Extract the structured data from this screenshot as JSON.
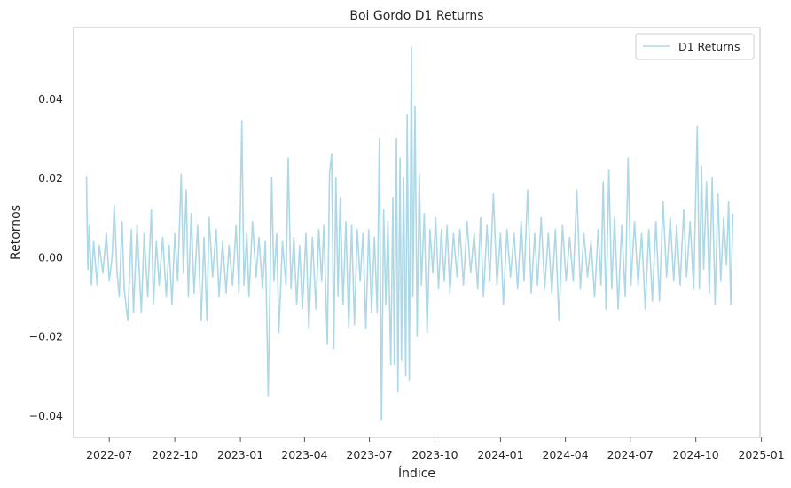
{
  "chart_data": {
    "type": "line",
    "title": "Boi Gordo D1 Returns",
    "xlabel": "Índice",
    "ylabel": "Retornos",
    "xlim": [
      "2022-05-12",
      "2024-12-30"
    ],
    "ylim": [
      -0.0455,
      0.058
    ],
    "x_ticks": [
      "2022-07",
      "2022-10",
      "2023-01",
      "2023-04",
      "2023-07",
      "2023-10",
      "2024-01",
      "2024-04",
      "2024-07",
      "2024-10",
      "2025-01"
    ],
    "y_ticks": [
      -0.04,
      -0.02,
      0.0,
      0.02,
      0.04
    ],
    "y_tick_labels": [
      "−0.04",
      "−0.02",
      "0.00",
      "0.02",
      "0.04"
    ],
    "grid": false,
    "legend_position": "top-right",
    "series": [
      {
        "name": "D1 Returns",
        "color": "#add8e6",
        "x_start": "2022-05-30",
        "x_end": "2024-11-22",
        "points": [
          [
            "2022-05-30",
            0.0205
          ],
          [
            "2022-06-01",
            -0.003
          ],
          [
            "2022-06-03",
            0.008
          ],
          [
            "2022-06-06",
            -0.007
          ],
          [
            "2022-06-09",
            0.004
          ],
          [
            "2022-06-14",
            -0.007
          ],
          [
            "2022-06-17",
            0.003
          ],
          [
            "2022-06-22",
            -0.004
          ],
          [
            "2022-06-27",
            0.006
          ],
          [
            "2022-07-01",
            -0.006
          ],
          [
            "2022-07-05",
            0.0
          ],
          [
            "2022-07-08",
            0.013
          ],
          [
            "2022-07-12",
            -0.004
          ],
          [
            "2022-07-15",
            -0.01
          ],
          [
            "2022-07-19",
            0.009
          ],
          [
            "2022-07-22",
            -0.008
          ],
          [
            "2022-07-27",
            -0.016
          ],
          [
            "2022-08-01",
            0.007
          ],
          [
            "2022-08-04",
            -0.014
          ],
          [
            "2022-08-09",
            0.008
          ],
          [
            "2022-08-15",
            -0.014
          ],
          [
            "2022-08-19",
            0.006
          ],
          [
            "2022-08-24",
            -0.01
          ],
          [
            "2022-08-29",
            0.012
          ],
          [
            "2022-09-01",
            -0.012
          ],
          [
            "2022-09-05",
            0.004
          ],
          [
            "2022-09-09",
            -0.007
          ],
          [
            "2022-09-14",
            0.005
          ],
          [
            "2022-09-19",
            -0.01
          ],
          [
            "2022-09-23",
            0.003
          ],
          [
            "2022-09-27",
            -0.012
          ],
          [
            "2022-10-01",
            0.006
          ],
          [
            "2022-10-05",
            -0.006
          ],
          [
            "2022-10-10",
            0.021
          ],
          [
            "2022-10-13",
            -0.004
          ],
          [
            "2022-10-17",
            0.017
          ],
          [
            "2022-10-20",
            -0.01
          ],
          [
            "2022-10-24",
            0.011
          ],
          [
            "2022-10-28",
            -0.009
          ],
          [
            "2022-11-02",
            0.008
          ],
          [
            "2022-11-07",
            -0.016
          ],
          [
            "2022-11-11",
            0.005
          ],
          [
            "2022-11-15",
            -0.016
          ],
          [
            "2022-11-18",
            0.01
          ],
          [
            "2022-11-23",
            -0.005
          ],
          [
            "2022-11-28",
            0.007
          ],
          [
            "2022-12-02",
            -0.01
          ],
          [
            "2022-12-07",
            0.004
          ],
          [
            "2022-12-12",
            -0.009
          ],
          [
            "2022-12-16",
            0.003
          ],
          [
            "2022-12-21",
            -0.007
          ],
          [
            "2022-12-26",
            0.008
          ],
          [
            "2022-12-30",
            -0.009
          ],
          [
            "2023-01-03",
            0.0345
          ],
          [
            "2023-01-06",
            -0.007
          ],
          [
            "2023-01-10",
            0.006
          ],
          [
            "2023-01-13",
            -0.01
          ],
          [
            "2023-01-18",
            0.009
          ],
          [
            "2023-01-23",
            -0.005
          ],
          [
            "2023-01-27",
            0.005
          ],
          [
            "2023-02-01",
            -0.008
          ],
          [
            "2023-02-05",
            0.004
          ],
          [
            "2023-02-09",
            -0.035
          ],
          [
            "2023-02-14",
            0.02
          ],
          [
            "2023-02-17",
            -0.006
          ],
          [
            "2023-02-21",
            0.006
          ],
          [
            "2023-02-24",
            -0.019
          ],
          [
            "2023-03-01",
            0.004
          ],
          [
            "2023-03-06",
            -0.007
          ],
          [
            "2023-03-09",
            0.025
          ],
          [
            "2023-03-13",
            -0.008
          ],
          [
            "2023-03-17",
            0.005
          ],
          [
            "2023-03-21",
            -0.012
          ],
          [
            "2023-03-25",
            0.003
          ],
          [
            "2023-03-29",
            -0.013
          ],
          [
            "2023-04-03",
            0.006
          ],
          [
            "2023-04-07",
            -0.018
          ],
          [
            "2023-04-12",
            0.005
          ],
          [
            "2023-04-17",
            -0.013
          ],
          [
            "2023-04-21",
            0.007
          ],
          [
            "2023-04-25",
            -0.006
          ],
          [
            "2023-04-28",
            0.008
          ],
          [
            "2023-05-03",
            -0.022
          ],
          [
            "2023-05-06",
            0.021
          ],
          [
            "2023-05-09",
            0.026
          ],
          [
            "2023-05-12",
            -0.023
          ],
          [
            "2023-05-15",
            0.02
          ],
          [
            "2023-05-18",
            -0.01
          ],
          [
            "2023-05-21",
            0.015
          ],
          [
            "2023-05-25",
            -0.012
          ],
          [
            "2023-05-29",
            0.009
          ],
          [
            "2023-06-02",
            -0.018
          ],
          [
            "2023-06-06",
            0.008
          ],
          [
            "2023-06-10",
            -0.017
          ],
          [
            "2023-06-14",
            0.007
          ],
          [
            "2023-06-18",
            -0.006
          ],
          [
            "2023-06-22",
            0.006
          ],
          [
            "2023-06-26",
            -0.018
          ],
          [
            "2023-06-30",
            0.007
          ],
          [
            "2023-07-04",
            -0.014
          ],
          [
            "2023-07-08",
            0.005
          ],
          [
            "2023-07-12",
            -0.014
          ],
          [
            "2023-07-15",
            0.03
          ],
          [
            "2023-07-18",
            -0.041
          ],
          [
            "2023-07-21",
            0.012
          ],
          [
            "2023-07-24",
            -0.012
          ],
          [
            "2023-07-27",
            0.009
          ],
          [
            "2023-07-31",
            -0.027
          ],
          [
            "2023-08-03",
            0.015
          ],
          [
            "2023-08-05",
            -0.027
          ],
          [
            "2023-08-08",
            0.03
          ],
          [
            "2023-08-10",
            -0.034
          ],
          [
            "2023-08-13",
            0.025
          ],
          [
            "2023-08-15",
            -0.026
          ],
          [
            "2023-08-18",
            0.02
          ],
          [
            "2023-08-21",
            -0.03
          ],
          [
            "2023-08-23",
            0.036
          ],
          [
            "2023-08-26",
            -0.031
          ],
          [
            "2023-08-29",
            0.053
          ],
          [
            "2023-08-31",
            -0.01
          ],
          [
            "2023-09-03",
            0.038
          ],
          [
            "2023-09-06",
            -0.02
          ],
          [
            "2023-09-09",
            0.021
          ],
          [
            "2023-09-12",
            -0.007
          ],
          [
            "2023-09-16",
            0.011
          ],
          [
            "2023-09-20",
            -0.019
          ],
          [
            "2023-09-24",
            0.007
          ],
          [
            "2023-09-28",
            -0.004
          ],
          [
            "2023-10-02",
            0.01
          ],
          [
            "2023-10-06",
            -0.008
          ],
          [
            "2023-10-10",
            0.007
          ],
          [
            "2023-10-14",
            -0.006
          ],
          [
            "2023-10-18",
            0.008
          ],
          [
            "2023-10-22",
            -0.009
          ],
          [
            "2023-10-27",
            0.006
          ],
          [
            "2023-11-01",
            -0.005
          ],
          [
            "2023-11-05",
            0.007
          ],
          [
            "2023-11-10",
            -0.007
          ],
          [
            "2023-11-15",
            0.009
          ],
          [
            "2023-11-20",
            -0.004
          ],
          [
            "2023-11-25",
            0.006
          ],
          [
            "2023-11-30",
            -0.008
          ],
          [
            "2023-12-04",
            0.01
          ],
          [
            "2023-12-08",
            -0.01
          ],
          [
            "2023-12-13",
            0.008
          ],
          [
            "2023-12-17",
            -0.006
          ],
          [
            "2023-12-22",
            0.016
          ],
          [
            "2023-12-27",
            -0.007
          ],
          [
            "2024-01-01",
            0.006
          ],
          [
            "2024-01-05",
            -0.012
          ],
          [
            "2024-01-10",
            0.007
          ],
          [
            "2024-01-15",
            -0.005
          ],
          [
            "2024-01-20",
            0.006
          ],
          [
            "2024-01-25",
            -0.008
          ],
          [
            "2024-01-30",
            0.009
          ],
          [
            "2024-02-03",
            -0.006
          ],
          [
            "2024-02-08",
            0.017
          ],
          [
            "2024-02-13",
            -0.009
          ],
          [
            "2024-02-18",
            0.006
          ],
          [
            "2024-02-22",
            -0.007
          ],
          [
            "2024-02-27",
            0.01
          ],
          [
            "2024-03-03",
            -0.008
          ],
          [
            "2024-03-08",
            0.006
          ],
          [
            "2024-03-13",
            -0.009
          ],
          [
            "2024-03-18",
            0.007
          ],
          [
            "2024-03-23",
            -0.016
          ],
          [
            "2024-03-28",
            0.008
          ],
          [
            "2024-04-02",
            -0.006
          ],
          [
            "2024-04-07",
            0.005
          ],
          [
            "2024-04-12",
            -0.006
          ],
          [
            "2024-04-17",
            0.017
          ],
          [
            "2024-04-22",
            -0.008
          ],
          [
            "2024-04-27",
            0.006
          ],
          [
            "2024-05-02",
            -0.005
          ],
          [
            "2024-05-07",
            0.004
          ],
          [
            "2024-05-12",
            -0.01
          ],
          [
            "2024-05-17",
            0.007
          ],
          [
            "2024-05-21",
            -0.007
          ],
          [
            "2024-05-24",
            0.019
          ],
          [
            "2024-05-28",
            -0.013
          ],
          [
            "2024-06-01",
            0.022
          ],
          [
            "2024-06-05",
            -0.008
          ],
          [
            "2024-06-09",
            0.01
          ],
          [
            "2024-06-14",
            -0.013
          ],
          [
            "2024-06-19",
            0.008
          ],
          [
            "2024-06-24",
            -0.01
          ],
          [
            "2024-06-28",
            0.025
          ],
          [
            "2024-07-02",
            -0.007
          ],
          [
            "2024-07-07",
            0.009
          ],
          [
            "2024-07-12",
            -0.007
          ],
          [
            "2024-07-17",
            0.006
          ],
          [
            "2024-07-22",
            -0.013
          ],
          [
            "2024-07-27",
            0.007
          ],
          [
            "2024-08-01",
            -0.011
          ],
          [
            "2024-08-06",
            0.009
          ],
          [
            "2024-08-11",
            -0.011
          ],
          [
            "2024-08-16",
            0.014
          ],
          [
            "2024-08-21",
            -0.005
          ],
          [
            "2024-08-26",
            0.01
          ],
          [
            "2024-08-31",
            -0.006
          ],
          [
            "2024-09-04",
            0.008
          ],
          [
            "2024-09-09",
            -0.007
          ],
          [
            "2024-09-14",
            0.012
          ],
          [
            "2024-09-18",
            -0.005
          ],
          [
            "2024-09-23",
            0.009
          ],
          [
            "2024-09-28",
            -0.008
          ],
          [
            "2024-10-03",
            0.033
          ],
          [
            "2024-10-06",
            -0.008
          ],
          [
            "2024-10-09",
            0.023
          ],
          [
            "2024-10-12",
            -0.003
          ],
          [
            "2024-10-16",
            0.019
          ],
          [
            "2024-10-20",
            -0.009
          ],
          [
            "2024-10-24",
            0.02
          ],
          [
            "2024-10-28",
            -0.012
          ],
          [
            "2024-11-01",
            0.016
          ],
          [
            "2024-11-05",
            -0.006
          ],
          [
            "2024-11-09",
            0.01
          ],
          [
            "2024-11-13",
            -0.002
          ],
          [
            "2024-11-16",
            0.014
          ],
          [
            "2024-11-19",
            -0.012
          ],
          [
            "2024-11-22",
            0.011
          ]
        ]
      }
    ]
  }
}
